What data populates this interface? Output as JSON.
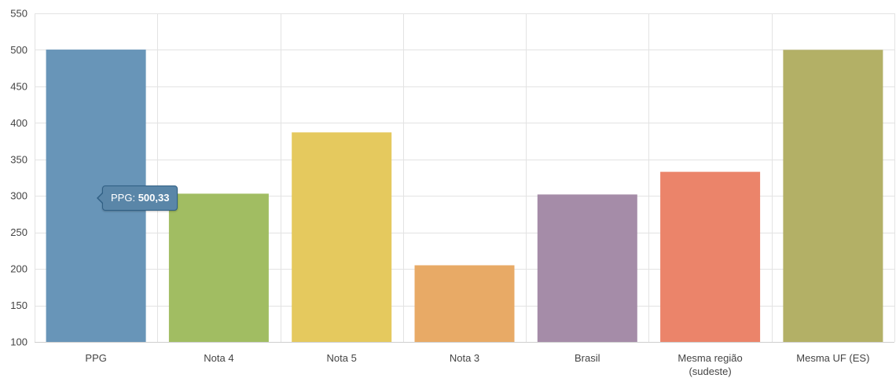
{
  "chart_data": {
    "type": "bar",
    "categories": [
      "PPG",
      "Nota 4",
      "Nota 5",
      "Nota 3",
      "Brasil",
      "Mesma região (sudeste)",
      "Mesma UF (ES)"
    ],
    "category_lines": [
      [
        "PPG"
      ],
      [
        "Nota 4"
      ],
      [
        "Nota 5"
      ],
      [
        "Nota 3"
      ],
      [
        "Brasil"
      ],
      [
        "Mesma região",
        "(sudeste)"
      ],
      [
        "Mesma UF (ES)"
      ]
    ],
    "values": [
      500.33,
      303,
      387,
      205,
      302,
      333,
      500
    ],
    "colors": [
      "#6895b8",
      "#a1bd62",
      "#e5c95e",
      "#e8aa66",
      "#a58ca8",
      "#eb846a",
      "#b3b066"
    ],
    "ylim": [
      100,
      550
    ],
    "yticks": [
      100,
      150,
      200,
      250,
      300,
      350,
      400,
      450,
      500,
      550
    ],
    "title": "",
    "xlabel": "",
    "ylabel": "",
    "grid": true
  },
  "tooltip": {
    "series": "PPG:",
    "value": "500,33"
  }
}
